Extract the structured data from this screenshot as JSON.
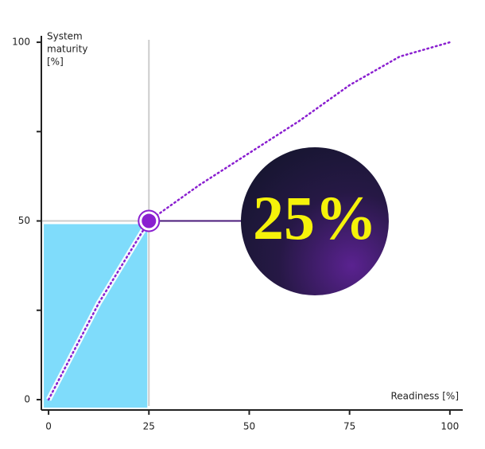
{
  "chart_data": {
    "type": "line",
    "ylabel": [
      "System",
      "maturity",
      "[%]"
    ],
    "xlabel": "Readiness [%]",
    "x": [
      0,
      12.5,
      25,
      37.5,
      50,
      62.5,
      75,
      87.5,
      100
    ],
    "series": [
      {
        "color": "#8a1fd0",
        "values": [
          0,
          27,
          50,
          60,
          69,
          78,
          88,
          96,
          100
        ]
      }
    ],
    "xlim": [
      -1.8,
      103.2
    ],
    "ylim": [
      -2.9,
      101.8
    ],
    "xticks": [
      0,
      25,
      50,
      75,
      100
    ],
    "yticks": [
      0,
      50,
      100
    ],
    "yminorticks": [
      25,
      75
    ],
    "highlight": {
      "x": 25,
      "y": 50
    },
    "annotation": "25%",
    "fill_color": "#7fdcfb"
  }
}
